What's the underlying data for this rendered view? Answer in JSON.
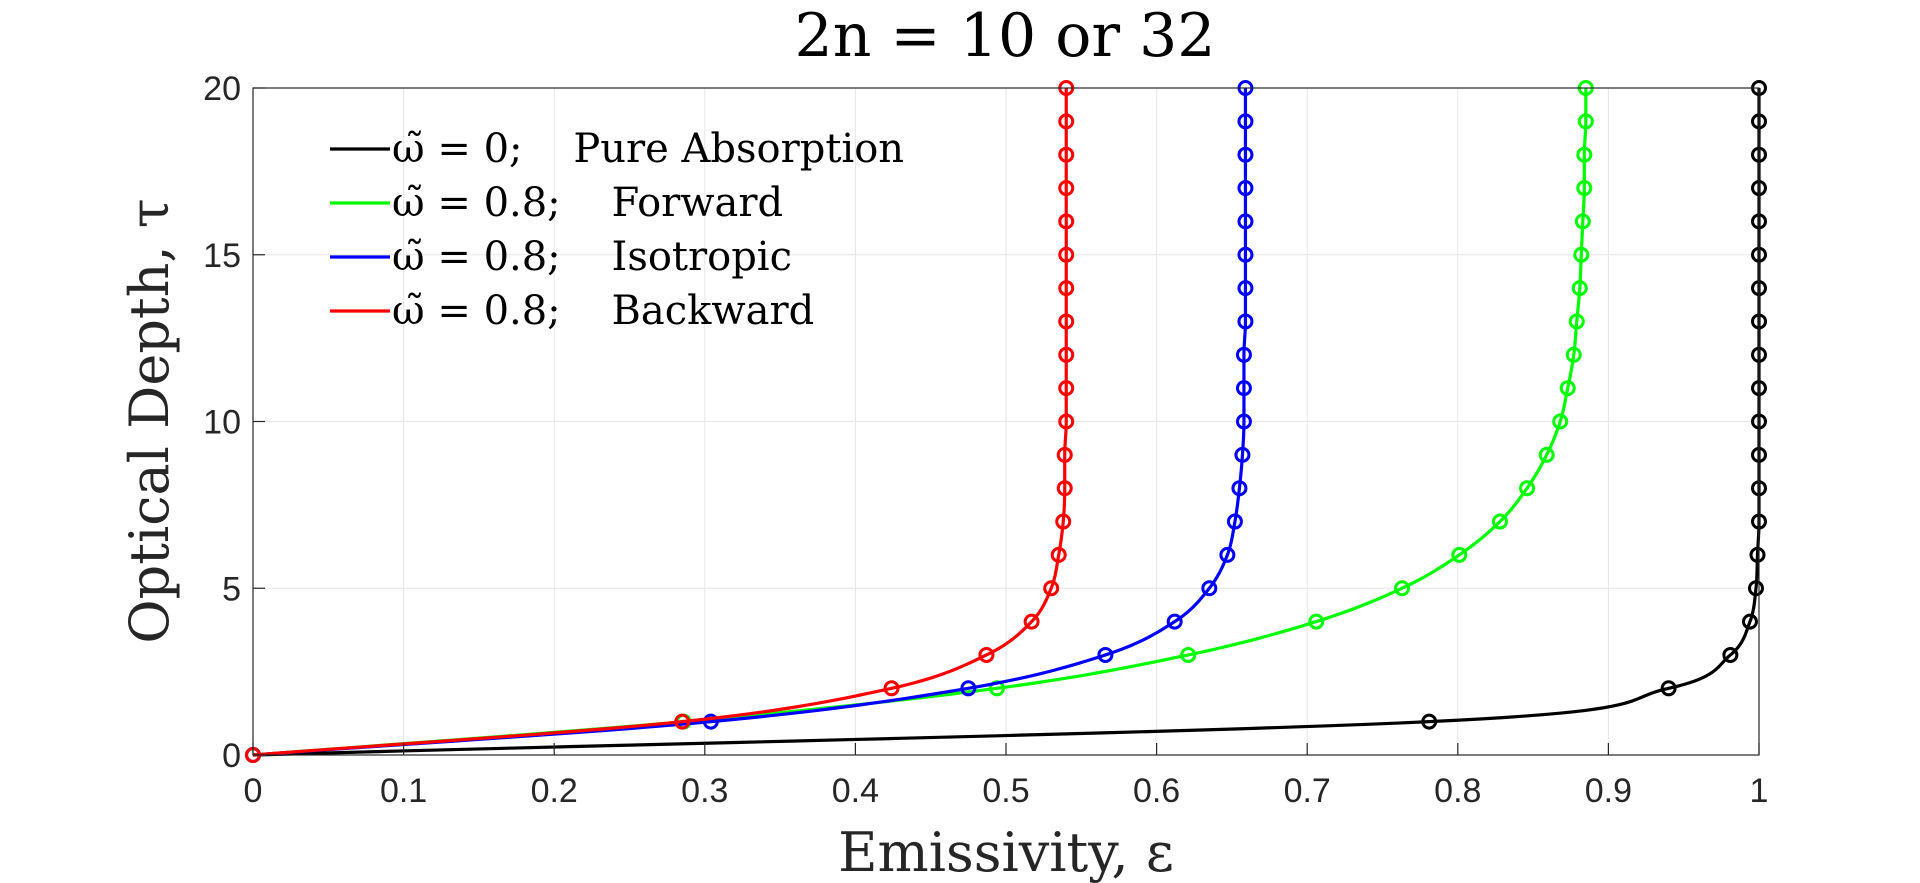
{
  "chart_data": {
    "type": "line",
    "title": "2n = 10 or 32",
    "xlabel": "Emissivity, ε",
    "ylabel": "Optical Depth, τ",
    "xlim": [
      0,
      1
    ],
    "ylim": [
      0,
      20
    ],
    "xticks": [
      0,
      0.1,
      0.2,
      0.3,
      0.4,
      0.5,
      0.6,
      0.7,
      0.8,
      0.9,
      1
    ],
    "xtick_labels": [
      "0",
      "0.1",
      "0.2",
      "0.3",
      "0.4",
      "0.5",
      "0.6",
      "0.7",
      "0.8",
      "0.9",
      "1"
    ],
    "yticks": [
      0,
      5,
      10,
      15,
      20
    ],
    "ytick_labels": [
      "0",
      "5",
      "10",
      "15",
      "20"
    ],
    "grid": true,
    "legend_position": "top-left",
    "series": [
      {
        "name": "ω̃ = 0;    Pure Absorption",
        "color": "#000000",
        "markers": [
          [
            0,
            0
          ],
          [
            0.781,
            1
          ],
          [
            0.94,
            2
          ],
          [
            0.981,
            3
          ],
          [
            0.994,
            4
          ],
          [
            0.998,
            5
          ],
          [
            0.999,
            6
          ],
          [
            1.0,
            7
          ],
          [
            1.0,
            8
          ],
          [
            1.0,
            9
          ],
          [
            1.0,
            10
          ],
          [
            1.0,
            11
          ],
          [
            1.0,
            12
          ],
          [
            1.0,
            13
          ],
          [
            1.0,
            14
          ],
          [
            1.0,
            15
          ],
          [
            1.0,
            16
          ],
          [
            1.0,
            17
          ],
          [
            1.0,
            18
          ],
          [
            1.0,
            19
          ],
          [
            1.0,
            20
          ]
        ]
      },
      {
        "name": "ω̃ = 0.8;    Forward",
        "color": "#00ff00",
        "markers": [
          [
            0,
            0
          ],
          [
            0.286,
            1
          ],
          [
            0.494,
            2
          ],
          [
            0.621,
            3
          ],
          [
            0.706,
            4
          ],
          [
            0.763,
            5
          ],
          [
            0.801,
            6
          ],
          [
            0.828,
            7
          ],
          [
            0.846,
            8
          ],
          [
            0.859,
            9
          ],
          [
            0.868,
            10
          ],
          [
            0.873,
            11
          ],
          [
            0.877,
            12
          ],
          [
            0.879,
            13
          ],
          [
            0.881,
            14
          ],
          [
            0.882,
            15
          ],
          [
            0.883,
            16
          ],
          [
            0.884,
            17
          ],
          [
            0.884,
            18
          ],
          [
            0.885,
            19
          ],
          [
            0.885,
            20
          ]
        ]
      },
      {
        "name": "ω̃ = 0.8;    Isotropic",
        "color": "#0000ff",
        "markers": [
          [
            0,
            0
          ],
          [
            0.304,
            1
          ],
          [
            0.475,
            2
          ],
          [
            0.566,
            3
          ],
          [
            0.612,
            4
          ],
          [
            0.635,
            5
          ],
          [
            0.647,
            6
          ],
          [
            0.652,
            7
          ],
          [
            0.655,
            8
          ],
          [
            0.657,
            9
          ],
          [
            0.658,
            10
          ],
          [
            0.658,
            11
          ],
          [
            0.658,
            12
          ],
          [
            0.659,
            13
          ],
          [
            0.659,
            14
          ],
          [
            0.659,
            15
          ],
          [
            0.659,
            16
          ],
          [
            0.659,
            17
          ],
          [
            0.659,
            18
          ],
          [
            0.659,
            19
          ],
          [
            0.659,
            20
          ]
        ]
      },
      {
        "name": "ω̃ = 0.8;    Backward",
        "color": "#ff0000",
        "markers": [
          [
            0,
            0
          ],
          [
            0.285,
            1
          ],
          [
            0.424,
            2
          ],
          [
            0.487,
            3
          ],
          [
            0.517,
            4
          ],
          [
            0.53,
            5
          ],
          [
            0.535,
            6
          ],
          [
            0.538,
            7
          ],
          [
            0.539,
            8
          ],
          [
            0.539,
            9
          ],
          [
            0.54,
            10
          ],
          [
            0.54,
            11
          ],
          [
            0.54,
            12
          ],
          [
            0.54,
            13
          ],
          [
            0.54,
            14
          ],
          [
            0.54,
            15
          ],
          [
            0.54,
            16
          ],
          [
            0.54,
            17
          ],
          [
            0.54,
            18
          ],
          [
            0.54,
            19
          ],
          [
            0.54,
            20
          ]
        ]
      }
    ]
  }
}
